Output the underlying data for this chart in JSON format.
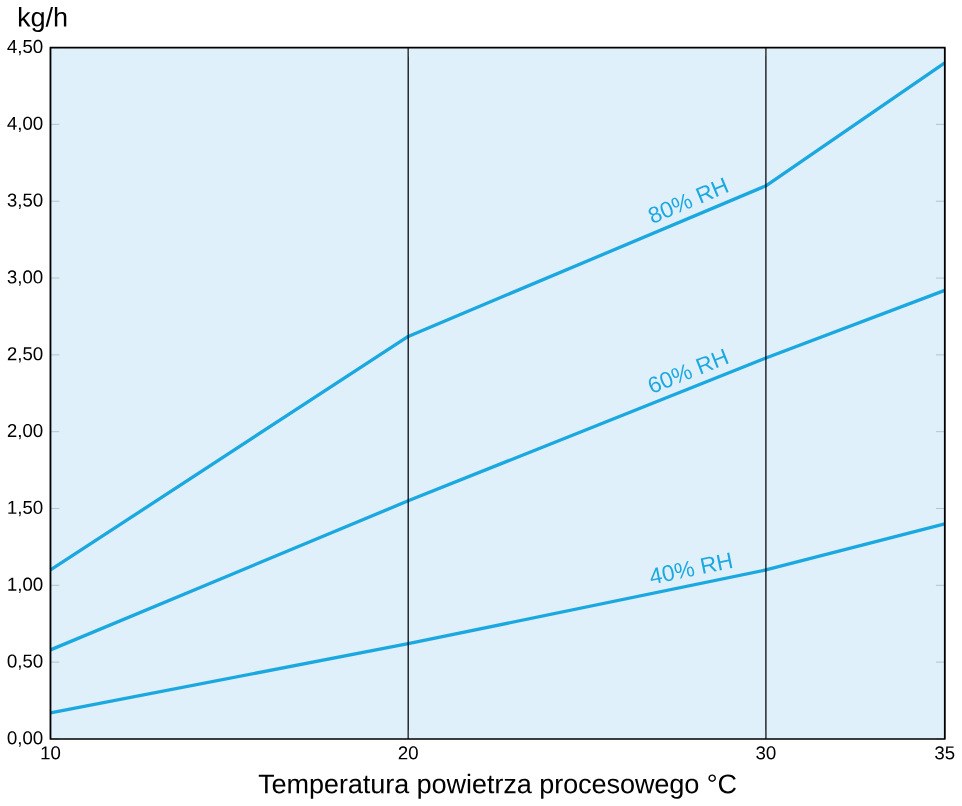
{
  "chart_data": {
    "type": "line",
    "ylabel": "kg/h",
    "xlabel": "Temperatura powietrza procesowego °C",
    "x": [
      10,
      20,
      30,
      35
    ],
    "series": [
      {
        "name": "80% RH",
        "color": "#1ba8e0",
        "values": [
          1.1,
          2.62,
          3.6,
          4.4
        ]
      },
      {
        "name": "60% RH",
        "color": "#1ba8e0",
        "values": [
          0.58,
          1.55,
          2.48,
          2.92
        ]
      },
      {
        "name": "40% RH",
        "color": "#1ba8e0",
        "values": [
          0.17,
          0.62,
          1.1,
          1.4
        ]
      }
    ],
    "xlim": [
      10,
      35
    ],
    "xticks": [
      10,
      20,
      30,
      35
    ],
    "ylim": [
      0,
      4.5
    ],
    "yticks": [
      {
        "value": 0,
        "label": "0,00"
      },
      {
        "value": 0.5,
        "label": "0,50"
      },
      {
        "value": 1,
        "label": "1,00"
      },
      {
        "value": 1.5,
        "label": "1,50"
      },
      {
        "value": 2,
        "label": "2,00"
      },
      {
        "value": 2.5,
        "label": "2,50"
      },
      {
        "value": 3,
        "label": "3,00"
      },
      {
        "value": 3.5,
        "label": "3,50"
      },
      {
        "value": 4,
        "label": "4,00"
      },
      {
        "value": 4.5,
        "label": "4,50"
      }
    ],
    "grid": "x",
    "marker": "none",
    "line_style": "solid",
    "legend": false
  }
}
